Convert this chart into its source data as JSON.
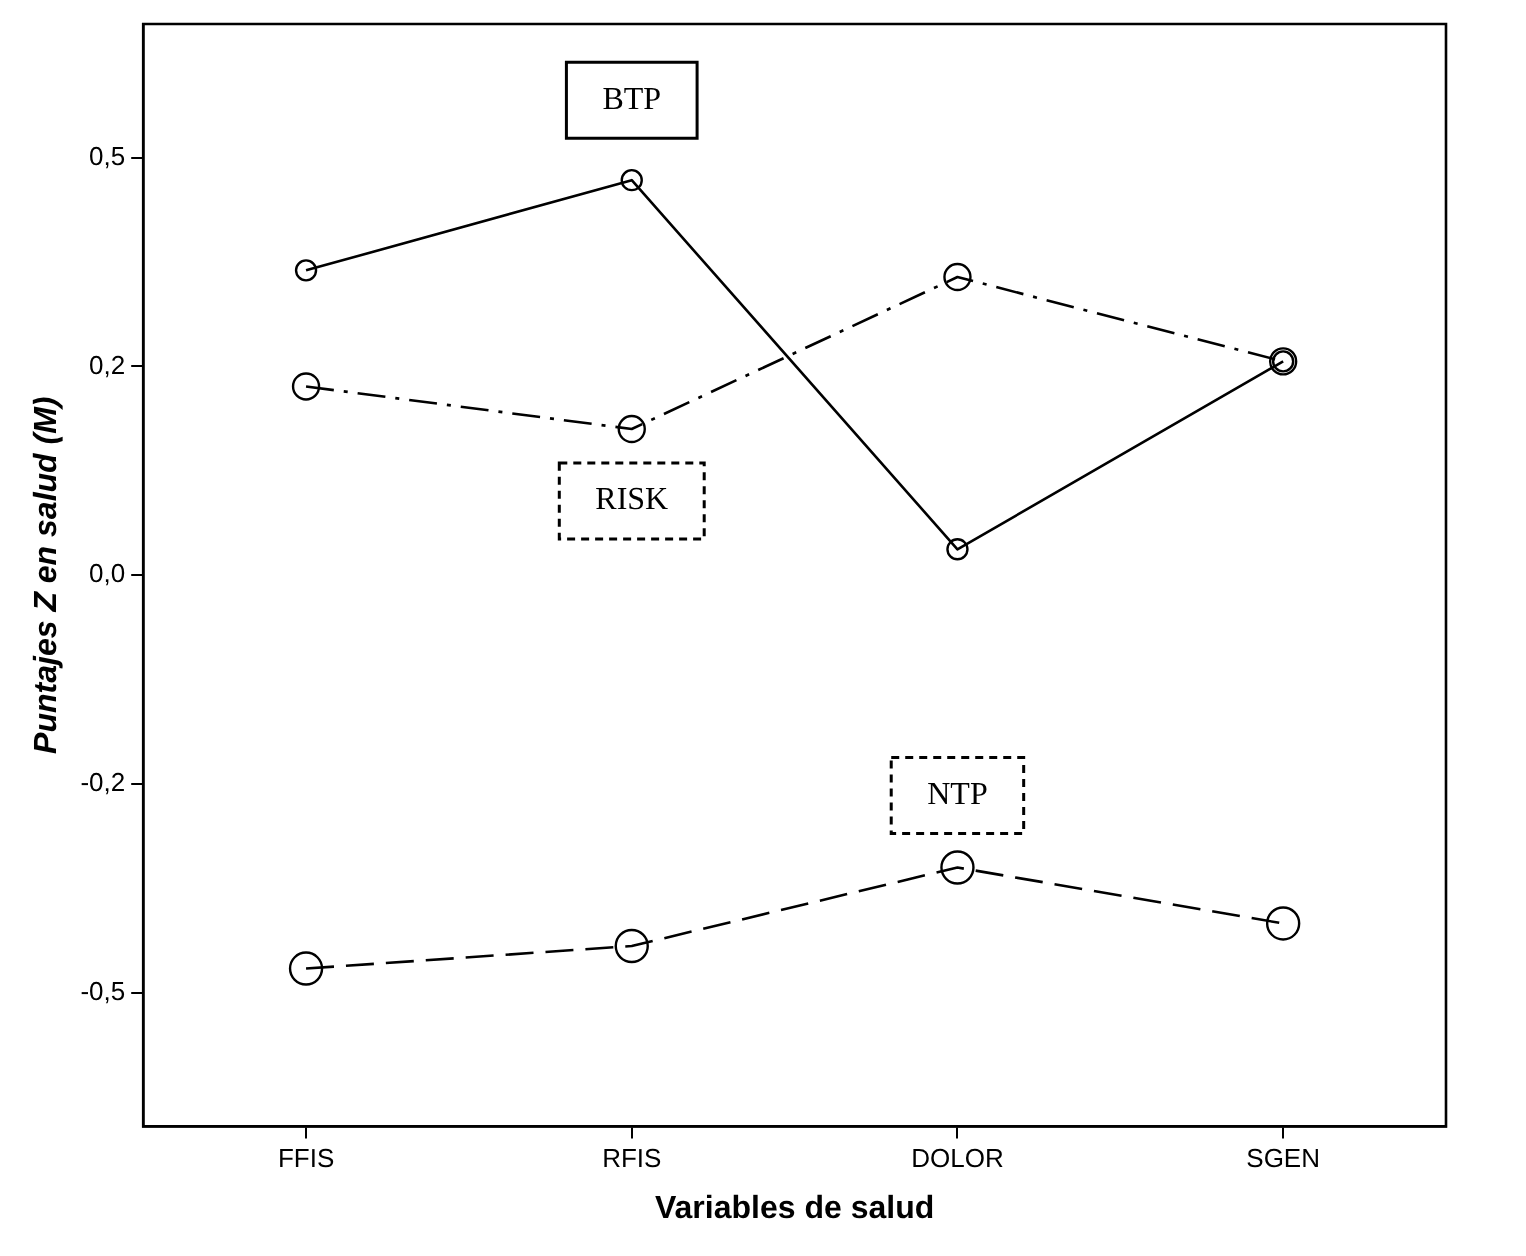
{
  "chart_data": {
    "type": "line",
    "xlabel": "Variables de salud",
    "ylabel": "Puntajes Z en salud (M)",
    "categories": [
      "FFIS",
      "RFIS",
      "DOLOR",
      "SGEN"
    ],
    "series": [
      {
        "name": "BTP",
        "color": "#000000",
        "line_style": "solid",
        "values": [
          0.365,
          0.473,
          0.031,
          0.256
        ]
      },
      {
        "name": "RISK",
        "color": "#000000",
        "line_style": "dashdot",
        "values": [
          0.226,
          0.175,
          0.357,
          0.256
        ]
      },
      {
        "name": "NTP",
        "color": "#000000",
        "line_style": "dashed",
        "values": [
          -0.471,
          -0.444,
          -0.35,
          -0.417
        ]
      }
    ],
    "ylim": [
      -0.66,
      0.66
    ],
    "yticks": [
      {
        "value": 0.5,
        "label": "0,5"
      },
      {
        "value": 0.25,
        "label": "0,2"
      },
      {
        "value": 0,
        "label": "0,0"
      },
      {
        "value": -0.25,
        "label": "-0,2"
      },
      {
        "value": -0.5,
        "label": "-0,5"
      }
    ],
    "marker": "circle",
    "grid": false,
    "legend": false
  }
}
